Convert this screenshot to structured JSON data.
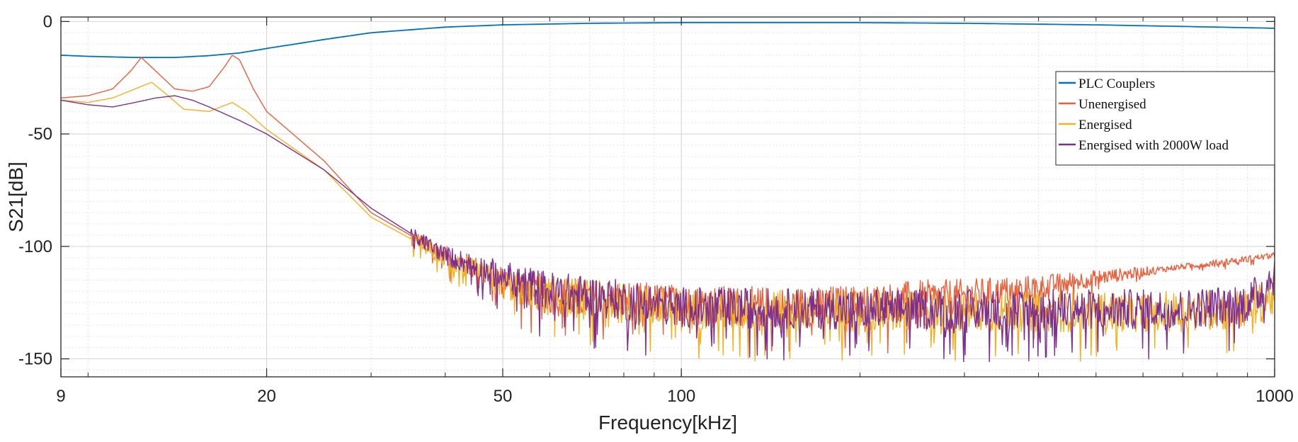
{
  "chart_data": {
    "type": "line",
    "title": "",
    "xlabel": "Frequency[kHz]",
    "ylabel": "S21[dB]",
    "x_scale": "log",
    "xlim": [
      9,
      1000
    ],
    "ylim": [
      -158,
      2
    ],
    "xticks": [
      9,
      20,
      50,
      100,
      1000
    ],
    "xtick_labels": [
      "9",
      "20",
      "50",
      "100",
      "1000"
    ],
    "yticks": [
      0,
      -50,
      -100,
      -150
    ],
    "ytick_labels": [
      "0",
      "-50",
      "-100",
      "-150"
    ],
    "grid": true,
    "minor_grid": true,
    "legend_position": "right",
    "series": [
      {
        "name": "PLC Couplers",
        "color": "#0072BD",
        "noise": 0,
        "x": [
          9,
          10,
          12,
          14,
          16,
          18,
          20,
          25,
          30,
          40,
          50,
          70,
          100,
          200,
          300,
          500,
          700,
          1000
        ],
        "y": [
          -15,
          -15.5,
          -16,
          -16,
          -15.2,
          -14,
          -12,
          -8,
          -5,
          -2.5,
          -1.5,
          -0.8,
          -0.5,
          -0.5,
          -0.8,
          -1.5,
          -2.2,
          -3
        ]
      },
      {
        "name": "Unenergised",
        "color": "#E8603C",
        "noise": 1,
        "x": [
          9,
          10,
          11,
          11.8,
          12.3,
          13,
          14,
          15,
          16,
          17,
          17.5,
          18,
          19,
          20,
          25,
          30,
          40,
          50,
          60,
          100,
          150,
          200,
          250,
          300,
          400,
          500,
          700,
          1000
        ],
        "y": [
          -34,
          -33,
          -30,
          -22,
          -16,
          -22,
          -30,
          -31,
          -29,
          -20,
          -15,
          -17,
          -30,
          -40,
          -62,
          -85,
          -104,
          -115,
          -122,
          -126,
          -127,
          -126,
          -124,
          -122,
          -118,
          -114,
          -109,
          -104
        ]
      },
      {
        "name": "Energised",
        "color": "#F5B022",
        "noise": 1,
        "x": [
          9,
          10,
          11,
          12,
          12.8,
          13.5,
          14.5,
          16,
          17.5,
          18.5,
          20,
          25,
          30,
          40,
          50,
          60,
          100,
          200,
          300,
          500,
          700,
          900,
          1000
        ],
        "y": [
          -35,
          -36,
          -34,
          -30,
          -27,
          -32,
          -39,
          -40,
          -36,
          -40,
          -48,
          -66,
          -87,
          -105,
          -117,
          -122,
          -128,
          -129,
          -129,
          -129,
          -129,
          -128,
          -122
        ]
      },
      {
        "name": "Energised with 2000W load",
        "color": "#7E2F8E",
        "noise": 1,
        "x": [
          9,
          10,
          11,
          12,
          13,
          14,
          15,
          16,
          18,
          20,
          25,
          30,
          40,
          50,
          60,
          100,
          200,
          300,
          500,
          700,
          900,
          950,
          1000
        ],
        "y": [
          -35,
          -37,
          -38,
          -36,
          -34,
          -33,
          -35,
          -38,
          -44,
          -50,
          -66,
          -83,
          -104,
          -113,
          -120,
          -127,
          -128,
          -128,
          -128,
          -128,
          -125,
          -120,
          -112
        ]
      }
    ]
  }
}
